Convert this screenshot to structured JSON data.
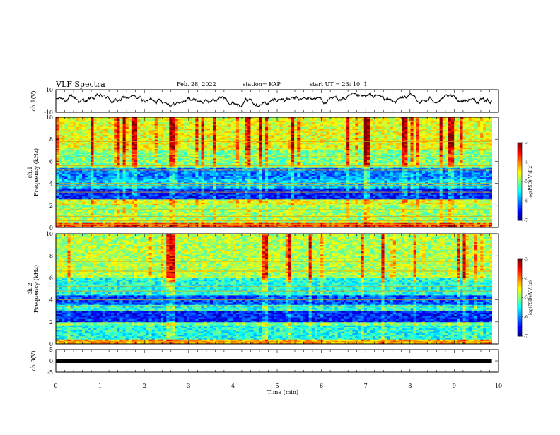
{
  "header": {
    "title": "VLF Spectra",
    "date": "Feb. 28, 2022",
    "station": "station= KAP",
    "start_ut": "start  UT  =   23: 10: 1"
  },
  "chart_data": [
    {
      "id": "ch1-voltage",
      "type": "line",
      "ylabel": "ch.1(V)",
      "ylim": [
        -10,
        10
      ],
      "yticks": [
        10,
        -10
      ],
      "xlim": [
        0,
        10
      ],
      "x_data_end": 9.85,
      "description_of_values": "noisy waveform oscillating roughly between -4 and 6 V"
    },
    {
      "id": "ch1-spectrogram",
      "type": "heatmap",
      "ylabel": "ch.1\nFrequency (kHz)",
      "ylim": [
        0,
        10
      ],
      "yticks": [
        0,
        2,
        4,
        6,
        8,
        10
      ],
      "xlim": [
        0,
        10
      ],
      "x_data_end": 9.85,
      "colorbar": {
        "label": "log(PSD)(V²/Hz)",
        "range": [
          -7,
          -3
        ],
        "ticks": [
          -3,
          -4,
          -5,
          -6,
          -7
        ]
      },
      "horizontal_lines_khz": [
        0.3,
        0.6,
        1.0,
        1.6,
        2.2,
        2.4,
        3.2,
        3.8,
        4.0,
        5.2,
        5.6,
        6.4,
        7.8
      ],
      "band_levels": [
        {
          "from": 0,
          "to": 0.5,
          "level": -3.8
        },
        {
          "from": 0.5,
          "to": 2.0,
          "level": -4.9
        },
        {
          "from": 2.0,
          "to": 2.6,
          "level": -4.6
        },
        {
          "from": 2.6,
          "to": 3.6,
          "level": -6.4
        },
        {
          "from": 3.6,
          "to": 4.4,
          "level": -5.7
        },
        {
          "from": 4.4,
          "to": 5.5,
          "level": -6.0
        },
        {
          "from": 5.5,
          "to": 7.0,
          "level": -5.0
        },
        {
          "from": 7.0,
          "to": 10.0,
          "level": -4.6
        }
      ]
    },
    {
      "id": "ch2-spectrogram",
      "type": "heatmap",
      "ylabel": "ch.2\nFrequency (kHz)",
      "ylim": [
        0,
        10
      ],
      "yticks": [
        0,
        2,
        4,
        6,
        8,
        10
      ],
      "xlim": [
        0,
        10
      ],
      "x_data_end": 9.85,
      "colorbar": {
        "label": "log(PSD)(V²/Hz)",
        "range": [
          -7,
          -3
        ],
        "ticks": [
          -3,
          -4,
          -5,
          -6,
          -7
        ]
      },
      "horizontal_lines_khz": [
        0.2,
        1.9,
        3.0,
        3.4,
        4.0,
        4.8,
        5.2,
        6.6,
        7.5
      ],
      "band_levels": [
        {
          "from": 0,
          "to": 0.4,
          "level": -4.2
        },
        {
          "from": 0.4,
          "to": 1.7,
          "level": -5.4
        },
        {
          "from": 1.7,
          "to": 2.0,
          "level": -5.0
        },
        {
          "from": 2.0,
          "to": 3.0,
          "level": -6.4
        },
        {
          "from": 3.0,
          "to": 3.6,
          "level": -5.4
        },
        {
          "from": 3.6,
          "to": 4.4,
          "level": -6.2
        },
        {
          "from": 4.4,
          "to": 6.0,
          "level": -5.4
        },
        {
          "from": 6.0,
          "to": 10.0,
          "level": -4.8
        }
      ]
    },
    {
      "id": "ch3-voltage",
      "type": "line",
      "ylabel": "ch.3(V)",
      "ylim": [
        -5,
        5
      ],
      "yticks": [
        5,
        0,
        -5
      ],
      "xlim": [
        0,
        10
      ],
      "x_data_end": 9.85,
      "level_v": 0
    }
  ],
  "xaxis": {
    "label": "Time  (min)",
    "ticks": [
      "0",
      "1",
      "2",
      "3",
      "4",
      "5",
      "6",
      "7",
      "8",
      "9",
      "10"
    ]
  }
}
